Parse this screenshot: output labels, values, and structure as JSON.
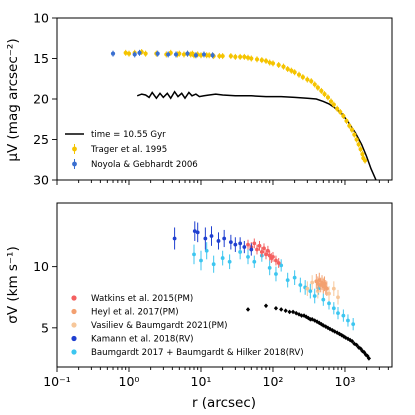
{
  "figure": {
    "xlabel": "r (arcsec)",
    "xaxis_ticks": [
      {
        "value": 0.1,
        "label": "10⁻¹"
      },
      {
        "value": 1,
        "label": "10⁰"
      },
      {
        "value": 10,
        "label": "10¹"
      },
      {
        "value": 100,
        "label": "10²"
      },
      {
        "value": 1000,
        "label": "10³"
      }
    ]
  },
  "chart_data": [
    {
      "type": "scatter",
      "panel": "top",
      "xscale": "log",
      "xlim": [
        0.1,
        4500
      ],
      "ylim": [
        30,
        10
      ],
      "y_inverted": true,
      "ylabel": "μV (mag arcsec⁻²)",
      "yticks": [
        10,
        15,
        20,
        25,
        30
      ],
      "colors": {
        "model": "#000000",
        "trager": "#f5c400",
        "noyola": "#3a6fd0"
      },
      "legend": {
        "position": "lower-left",
        "entries": [
          {
            "label": "time = 10.55 Gyr",
            "marker": "line",
            "color": "#000000"
          },
          {
            "label": "Trager et al. 1995",
            "marker": "point",
            "color": "#f5c400"
          },
          {
            "label": "Noyola & Gebhardt 2006",
            "marker": "point",
            "color": "#3a6fd0"
          }
        ]
      },
      "series": [
        {
          "name": "time = 10.55 Gyr",
          "style": "line",
          "x": [
            1.3,
            1.5,
            1.7,
            1.9,
            2.1,
            2.4,
            2.7,
            3.0,
            3.4,
            3.8,
            4.3,
            4.8,
            5.4,
            6.0,
            6.8,
            7.5,
            8.5,
            9.5,
            11,
            13,
            16,
            20,
            30,
            50,
            80,
            130,
            200,
            300,
            400,
            500,
            600,
            700,
            900,
            1100,
            1400,
            1700,
            2000,
            2300,
            2700
          ],
          "y": [
            19.6,
            19.4,
            19.5,
            19.8,
            19.2,
            19.9,
            19.3,
            19.8,
            19.3,
            19.9,
            19.1,
            19.7,
            19.3,
            19.9,
            19.2,
            19.6,
            19.4,
            19.7,
            19.6,
            19.5,
            19.4,
            19.5,
            19.6,
            19.6,
            19.7,
            19.7,
            19.8,
            19.9,
            20.0,
            20.3,
            20.6,
            21.0,
            21.8,
            22.8,
            24.2,
            25.6,
            27.1,
            28.6,
            30.0
          ]
        },
        {
          "name": "Trager et al. 1995",
          "style": "points",
          "x": [
            0.9,
            1.0,
            1.2,
            1.5,
            1.7,
            2.4,
            3.3,
            3.8,
            4.7,
            5.0,
            5.8,
            6.5,
            7.2,
            7.6,
            8.0,
            9.0,
            10,
            12,
            13,
            15,
            18,
            20,
            26,
            30,
            35,
            40,
            45,
            50,
            60,
            70,
            80,
            90,
            100,
            120,
            140,
            160,
            180,
            200,
            230,
            260,
            300,
            340,
            380,
            420,
            470,
            520,
            580,
            640,
            700,
            780,
            860,
            950,
            1050,
            1150,
            1250,
            1350,
            1450,
            1550,
            1650,
            1750,
            1800,
            1900
          ],
          "y": [
            14.3,
            14.4,
            14.3,
            14.2,
            14.4,
            14.4,
            14.5,
            14.3,
            14.5,
            14.4,
            14.5,
            14.4,
            14.5,
            14.4,
            14.6,
            14.5,
            14.6,
            14.6,
            14.6,
            14.7,
            14.7,
            14.7,
            14.7,
            14.8,
            14.8,
            14.8,
            14.9,
            15.0,
            15.1,
            15.2,
            15.3,
            15.5,
            15.6,
            15.8,
            16.0,
            16.3,
            16.5,
            16.7,
            17.0,
            17.3,
            17.6,
            17.8,
            18.2,
            18.6,
            19.0,
            19.4,
            19.8,
            20.3,
            20.7,
            21.2,
            21.6,
            22.1,
            22.7,
            23.3,
            23.8,
            24.4,
            25.0,
            25.6,
            26.2,
            26.8,
            27.3,
            27.6
          ]
        },
        {
          "name": "Noyola & Gebhardt 2006",
          "style": "points",
          "x": [
            0.6,
            1.2,
            1.4,
            2.5,
            3.5,
            4.5,
            6.5,
            8.5,
            11,
            14.5
          ],
          "y": [
            14.4,
            14.5,
            14.3,
            14.4,
            14.5,
            14.5,
            14.4,
            14.6,
            14.5,
            14.6
          ]
        }
      ]
    },
    {
      "type": "scatter",
      "panel": "bottom",
      "xscale": "log",
      "xlim": [
        0.1,
        4500
      ],
      "ylim": [
        1.8,
        15.2
      ],
      "ylabel": "σV (km s⁻¹)",
      "yticks": [
        5,
        10
      ],
      "colors": {
        "watkins": "#f46060",
        "heyl": "#f3a070",
        "vasiliev": "#f7c79a",
        "kamann": "#1f3fd0",
        "baumgardt": "#3cc6f0",
        "model": "#000000"
      },
      "legend": {
        "position": "lower-left",
        "entries": [
          {
            "label": "Watkins et al. 2015(PM)",
            "color": "#f46060"
          },
          {
            "label": "Heyl et al. 2017(PM)",
            "color": "#f3a070"
          },
          {
            "label": "Vasiliev & Baumgardt 2021(PM)",
            "color": "#f7c79a"
          },
          {
            "label": "Kamann et al. 2018(RV)",
            "color": "#1f3fd0"
          },
          {
            "label": "Baumgardt 2017 + Baumgardt & Hilker 2018(RV)",
            "color": "#3cc6f0"
          }
        ]
      },
      "series": [
        {
          "name": "Watkins et al. 2015(PM)",
          "x": [
            45,
            50,
            55,
            60,
            65,
            70,
            75,
            80,
            85,
            90,
            95,
            100,
            110,
            120
          ],
          "y": [
            11.8,
            11.6,
            11.9,
            11.4,
            11.7,
            11.2,
            11.5,
            11.0,
            11.3,
            10.9,
            10.7,
            10.8,
            10.5,
            10.3
          ],
          "err": [
            0.4,
            0.4,
            0.4,
            0.4,
            0.4,
            0.4,
            0.4,
            0.4,
            0.4,
            0.4,
            0.4,
            0.4,
            0.4,
            0.4
          ]
        },
        {
          "name": "Heyl et al. 2017(PM)",
          "x": [
            400,
            420,
            440,
            460,
            480,
            500,
            520,
            540,
            560
          ],
          "y": [
            8.8,
            8.6,
            8.9,
            8.5,
            8.7,
            8.4,
            8.6,
            8.3,
            8.2
          ],
          "err": [
            0.6,
            0.6,
            0.6,
            0.6,
            0.6,
            0.6,
            0.6,
            0.6,
            0.6
          ]
        },
        {
          "name": "Vasiliev & Baumgardt 2021(PM)",
          "x": [
            300,
            350,
            420,
            500,
            600,
            700,
            800
          ],
          "y": [
            8.2,
            8.7,
            8.0,
            8.5,
            7.8,
            8.2,
            7.5
          ],
          "err": [
            0.6,
            0.6,
            0.6,
            0.6,
            0.6,
            0.6,
            0.6
          ]
        },
        {
          "name": "Kamann et al. 2018(RV)",
          "x": [
            4.3,
            8.2,
            9.0,
            11.5,
            14,
            17.5,
            21,
            26,
            30,
            35,
            40,
            50
          ],
          "y": [
            12.3,
            12.9,
            12.8,
            12.3,
            12.5,
            12.1,
            12.3,
            12.0,
            11.8,
            11.9,
            11.6,
            11.4
          ],
          "err": [
            0.9,
            0.8,
            0.8,
            0.9,
            0.8,
            0.7,
            0.7,
            0.6,
            0.6,
            0.5,
            0.5,
            0.5
          ]
        },
        {
          "name": "Baumgardt 2017 + Baumgardt & Hilker 2018(RV)",
          "x": [
            8,
            10,
            12,
            15,
            20,
            25,
            35,
            45,
            55,
            70,
            90,
            110,
            130,
            160,
            200,
            240,
            280,
            330,
            380,
            430,
            500,
            600,
            700,
            800,
            950,
            1100,
            1300
          ],
          "y": [
            11.0,
            10.5,
            11.3,
            10.2,
            10.7,
            10.4,
            11.2,
            10.8,
            10.4,
            10.9,
            9.9,
            9.4,
            10.1,
            8.9,
            9.1,
            8.5,
            8.3,
            8.0,
            7.6,
            8.2,
            7.3,
            7.0,
            6.6,
            6.2,
            6.0,
            5.6,
            5.3
          ],
          "err": [
            0.8,
            0.8,
            0.7,
            0.7,
            0.6,
            0.6,
            0.6,
            0.6,
            0.5,
            0.5,
            0.6,
            0.6,
            0.5,
            0.6,
            0.6,
            0.6,
            0.6,
            0.6,
            0.6,
            0.5,
            0.5,
            0.5,
            0.5,
            0.5,
            0.5,
            0.5,
            0.5
          ]
        },
        {
          "name": "model",
          "style": "black-diamonds",
          "x": [
            45,
            80,
            110,
            130,
            150,
            170,
            190,
            210,
            230,
            250,
            270,
            290,
            310,
            330,
            350,
            380,
            410,
            440,
            470,
            500,
            540,
            580,
            620,
            670,
            720,
            780,
            840,
            900,
            960,
            1020,
            1100,
            1180,
            1260,
            1350,
            1450,
            1550,
            1650,
            1750,
            1850,
            1950,
            2050,
            2150
          ],
          "y": [
            6.5,
            6.8,
            6.6,
            6.5,
            6.4,
            6.3,
            6.3,
            6.2,
            6.1,
            6.0,
            6.0,
            5.9,
            5.8,
            5.7,
            5.7,
            5.6,
            5.5,
            5.4,
            5.3,
            5.2,
            5.1,
            5.0,
            4.9,
            4.8,
            4.7,
            4.6,
            4.5,
            4.4,
            4.3,
            4.2,
            4.1,
            4.0,
            3.9,
            3.7,
            3.6,
            3.4,
            3.3,
            3.1,
            3.0,
            2.8,
            2.7,
            2.5
          ]
        }
      ]
    }
  ]
}
